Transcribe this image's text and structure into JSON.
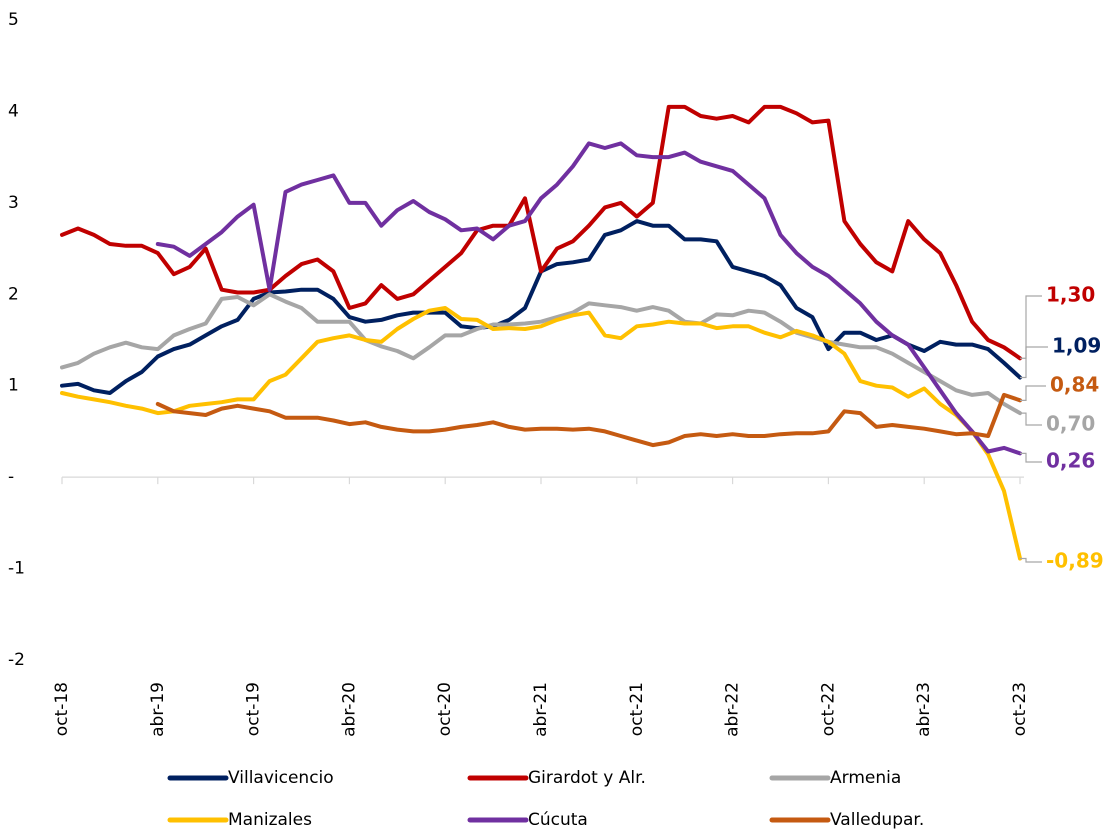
{
  "chart_data": {
    "type": "line",
    "categories": [
      "oct-18",
      null,
      null,
      null,
      null,
      null,
      "abr-19",
      null,
      null,
      null,
      null,
      null,
      "oct-19",
      null,
      null,
      null,
      null,
      null,
      "abr-20",
      null,
      null,
      null,
      null,
      null,
      "oct-20",
      null,
      null,
      null,
      null,
      null,
      "abr-21",
      null,
      null,
      null,
      null,
      null,
      "oct-21",
      null,
      null,
      null,
      null,
      null,
      "abr-22",
      null,
      null,
      null,
      null,
      null,
      "oct-22",
      null,
      null,
      null,
      null,
      null,
      "abr-23",
      null,
      null,
      null,
      null,
      null,
      "oct-23"
    ],
    "ylim": [
      -2,
      5
    ],
    "yticks": [
      -2,
      -1,
      {
        "value": 0,
        "label": "-"
      },
      1,
      2,
      3,
      4,
      5
    ],
    "legend": "bottom",
    "series": [
      {
        "name": "Villavicencio",
        "color": "#002060",
        "values": [
          1.0,
          1.02,
          0.95,
          0.92,
          1.05,
          1.15,
          1.32,
          1.4,
          1.45,
          1.55,
          1.65,
          1.72,
          1.95,
          2.02,
          2.03,
          2.05,
          2.05,
          1.95,
          1.75,
          1.7,
          1.72,
          1.77,
          1.8,
          1.8,
          1.8,
          1.65,
          1.63,
          1.65,
          1.72,
          1.85,
          2.25,
          2.33,
          2.35,
          2.38,
          2.65,
          2.7,
          2.8,
          2.75,
          2.75,
          2.6,
          2.6,
          2.58,
          2.3,
          2.25,
          2.2,
          2.1,
          1.85,
          1.75,
          1.4,
          1.58,
          1.58,
          1.5,
          1.55,
          1.45,
          1.38,
          1.48,
          1.45,
          1.45,
          1.4,
          1.25,
          1.09
        ],
        "value_labels": [
          null,
          null,
          null,
          null,
          null,
          null,
          null,
          null,
          null,
          null,
          null,
          null,
          null,
          null,
          null,
          null,
          null,
          null,
          null,
          null,
          null,
          null,
          null,
          null,
          null,
          null,
          null,
          null,
          null,
          null,
          null,
          null,
          null,
          null,
          null,
          null,
          null,
          null,
          null,
          null,
          null,
          null,
          null,
          null,
          null,
          null,
          null,
          null,
          null,
          null,
          null,
          null,
          null,
          null,
          null,
          null,
          null,
          null,
          null,
          null,
          "1,09"
        ]
      },
      {
        "name": "Girardot y Alr.",
        "color": "#c00000",
        "values": [
          2.65,
          2.72,
          2.65,
          2.55,
          2.53,
          2.53,
          2.45,
          2.22,
          2.3,
          2.5,
          2.05,
          2.02,
          2.02,
          2.05,
          2.2,
          2.33,
          2.38,
          2.25,
          1.85,
          1.9,
          2.1,
          1.95,
          2.0,
          2.15,
          2.3,
          2.45,
          2.7,
          2.75,
          2.75,
          3.05,
          2.25,
          2.5,
          2.58,
          2.75,
          2.95,
          3.0,
          2.85,
          3.0,
          4.05,
          4.05,
          3.95,
          3.92,
          3.95,
          3.88,
          4.05,
          4.05,
          3.98,
          3.88,
          3.9,
          2.8,
          2.55,
          2.35,
          2.25,
          2.8,
          2.6,
          2.45,
          2.1,
          1.7,
          1.5,
          1.42,
          1.3
        ],
        "value_labels": [
          null,
          null,
          null,
          null,
          null,
          null,
          null,
          null,
          null,
          null,
          null,
          null,
          null,
          null,
          null,
          null,
          null,
          null,
          null,
          null,
          null,
          null,
          null,
          null,
          null,
          null,
          null,
          null,
          null,
          null,
          null,
          null,
          null,
          null,
          null,
          null,
          null,
          null,
          null,
          null,
          null,
          null,
          null,
          null,
          null,
          null,
          null,
          null,
          null,
          null,
          null,
          null,
          null,
          null,
          null,
          null,
          null,
          null,
          null,
          null,
          "1,30"
        ]
      },
      {
        "name": "Armenia",
        "color": "#a6a6a6",
        "values": [
          1.2,
          1.25,
          1.35,
          1.42,
          1.47,
          1.42,
          1.4,
          1.55,
          1.62,
          1.68,
          1.95,
          1.97,
          1.88,
          2.0,
          1.92,
          1.85,
          1.7,
          1.7,
          1.7,
          1.5,
          1.43,
          1.38,
          1.3,
          1.42,
          1.55,
          1.55,
          1.62,
          1.67,
          1.67,
          1.68,
          1.7,
          1.75,
          1.8,
          1.9,
          1.88,
          1.86,
          1.82,
          1.86,
          1.82,
          1.7,
          1.68,
          1.78,
          1.77,
          1.82,
          1.8,
          1.7,
          1.58,
          1.53,
          1.48,
          1.45,
          1.42,
          1.42,
          1.35,
          1.25,
          1.15,
          1.05,
          0.95,
          0.9,
          0.92,
          0.8,
          0.7
        ],
        "value_labels": [
          null,
          null,
          null,
          null,
          null,
          null,
          null,
          null,
          null,
          null,
          null,
          null,
          null,
          null,
          null,
          null,
          null,
          null,
          null,
          null,
          null,
          null,
          null,
          null,
          null,
          null,
          null,
          null,
          null,
          null,
          null,
          null,
          null,
          null,
          null,
          null,
          null,
          null,
          null,
          null,
          null,
          null,
          null,
          null,
          null,
          null,
          null,
          null,
          null,
          null,
          null,
          null,
          null,
          null,
          null,
          null,
          null,
          null,
          null,
          null,
          "0,70"
        ]
      },
      {
        "name": "Manizales",
        "color": "#ffc000",
        "values": [
          0.92,
          0.88,
          0.85,
          0.82,
          0.78,
          0.75,
          0.7,
          0.72,
          0.78,
          0.8,
          0.82,
          0.85,
          0.85,
          1.05,
          1.12,
          1.3,
          1.48,
          1.52,
          1.55,
          1.5,
          1.48,
          1.62,
          1.73,
          1.82,
          1.85,
          1.73,
          1.72,
          1.62,
          1.63,
          1.62,
          1.65,
          1.72,
          1.77,
          1.8,
          1.55,
          1.52,
          1.65,
          1.67,
          1.7,
          1.68,
          1.68,
          1.63,
          1.65,
          1.65,
          1.58,
          1.53,
          1.6,
          1.55,
          1.48,
          1.35,
          1.05,
          1.0,
          0.98,
          0.88,
          0.97,
          0.8,
          0.68,
          0.5,
          0.25,
          -0.15,
          -0.89
        ],
        "value_labels": [
          null,
          null,
          null,
          null,
          null,
          null,
          null,
          null,
          null,
          null,
          null,
          null,
          null,
          null,
          null,
          null,
          null,
          null,
          null,
          null,
          null,
          null,
          null,
          null,
          null,
          null,
          null,
          null,
          null,
          null,
          null,
          null,
          null,
          null,
          null,
          null,
          null,
          null,
          null,
          null,
          null,
          null,
          null,
          null,
          null,
          null,
          null,
          null,
          null,
          null,
          null,
          null,
          null,
          null,
          null,
          null,
          null,
          null,
          null,
          null,
          "-0,89"
        ]
      },
      {
        "name": "Cúcuta",
        "color": "#7030a0",
        "values": [
          null,
          null,
          null,
          null,
          null,
          null,
          2.55,
          2.52,
          2.42,
          2.55,
          2.68,
          2.85,
          2.98,
          2.05,
          3.12,
          3.2,
          3.25,
          3.3,
          3.0,
          3.0,
          2.75,
          2.92,
          3.02,
          2.9,
          2.82,
          2.7,
          2.72,
          2.6,
          2.75,
          2.8,
          3.05,
          3.2,
          3.4,
          3.65,
          3.6,
          3.65,
          3.52,
          3.5,
          3.5,
          3.55,
          3.45,
          3.4,
          3.35,
          3.2,
          3.05,
          2.65,
          2.45,
          2.3,
          2.2,
          2.05,
          1.9,
          1.7,
          1.55,
          1.45,
          1.2,
          0.95,
          0.7,
          0.5,
          0.28,
          0.32,
          0.26
        ],
        "value_labels": [
          null,
          null,
          null,
          null,
          null,
          null,
          null,
          null,
          null,
          null,
          null,
          null,
          null,
          null,
          null,
          null,
          null,
          null,
          null,
          null,
          null,
          null,
          null,
          null,
          null,
          null,
          null,
          null,
          null,
          null,
          null,
          null,
          null,
          null,
          null,
          null,
          null,
          null,
          null,
          null,
          null,
          null,
          null,
          null,
          null,
          null,
          null,
          null,
          null,
          null,
          null,
          null,
          null,
          null,
          null,
          null,
          null,
          null,
          null,
          null,
          "0,26"
        ]
      },
      {
        "name": "Valledupar.",
        "color": "#c55a11",
        "values": [
          null,
          null,
          null,
          null,
          null,
          null,
          0.8,
          0.72,
          0.7,
          0.68,
          0.75,
          0.78,
          0.75,
          0.72,
          0.65,
          0.65,
          0.65,
          0.62,
          0.58,
          0.6,
          0.55,
          0.52,
          0.5,
          0.5,
          0.52,
          0.55,
          0.57,
          0.6,
          0.55,
          0.52,
          0.53,
          0.53,
          0.52,
          0.53,
          0.5,
          0.45,
          0.4,
          0.35,
          0.38,
          0.45,
          0.47,
          0.45,
          0.47,
          0.45,
          0.45,
          0.47,
          0.48,
          0.48,
          0.5,
          0.72,
          0.7,
          0.55,
          0.57,
          0.55,
          0.53,
          0.5,
          0.47,
          0.48,
          0.45,
          0.9,
          0.84
        ],
        "value_labels": [
          null,
          null,
          null,
          null,
          null,
          null,
          null,
          null,
          null,
          null,
          null,
          null,
          null,
          null,
          null,
          null,
          null,
          null,
          null,
          null,
          null,
          null,
          null,
          null,
          null,
          null,
          null,
          null,
          null,
          null,
          null,
          null,
          null,
          null,
          null,
          null,
          null,
          null,
          null,
          null,
          null,
          null,
          null,
          null,
          null,
          null,
          null,
          null,
          null,
          null,
          null,
          null,
          null,
          null,
          null,
          null,
          null,
          null,
          null,
          null,
          "0,84"
        ]
      }
    ]
  }
}
